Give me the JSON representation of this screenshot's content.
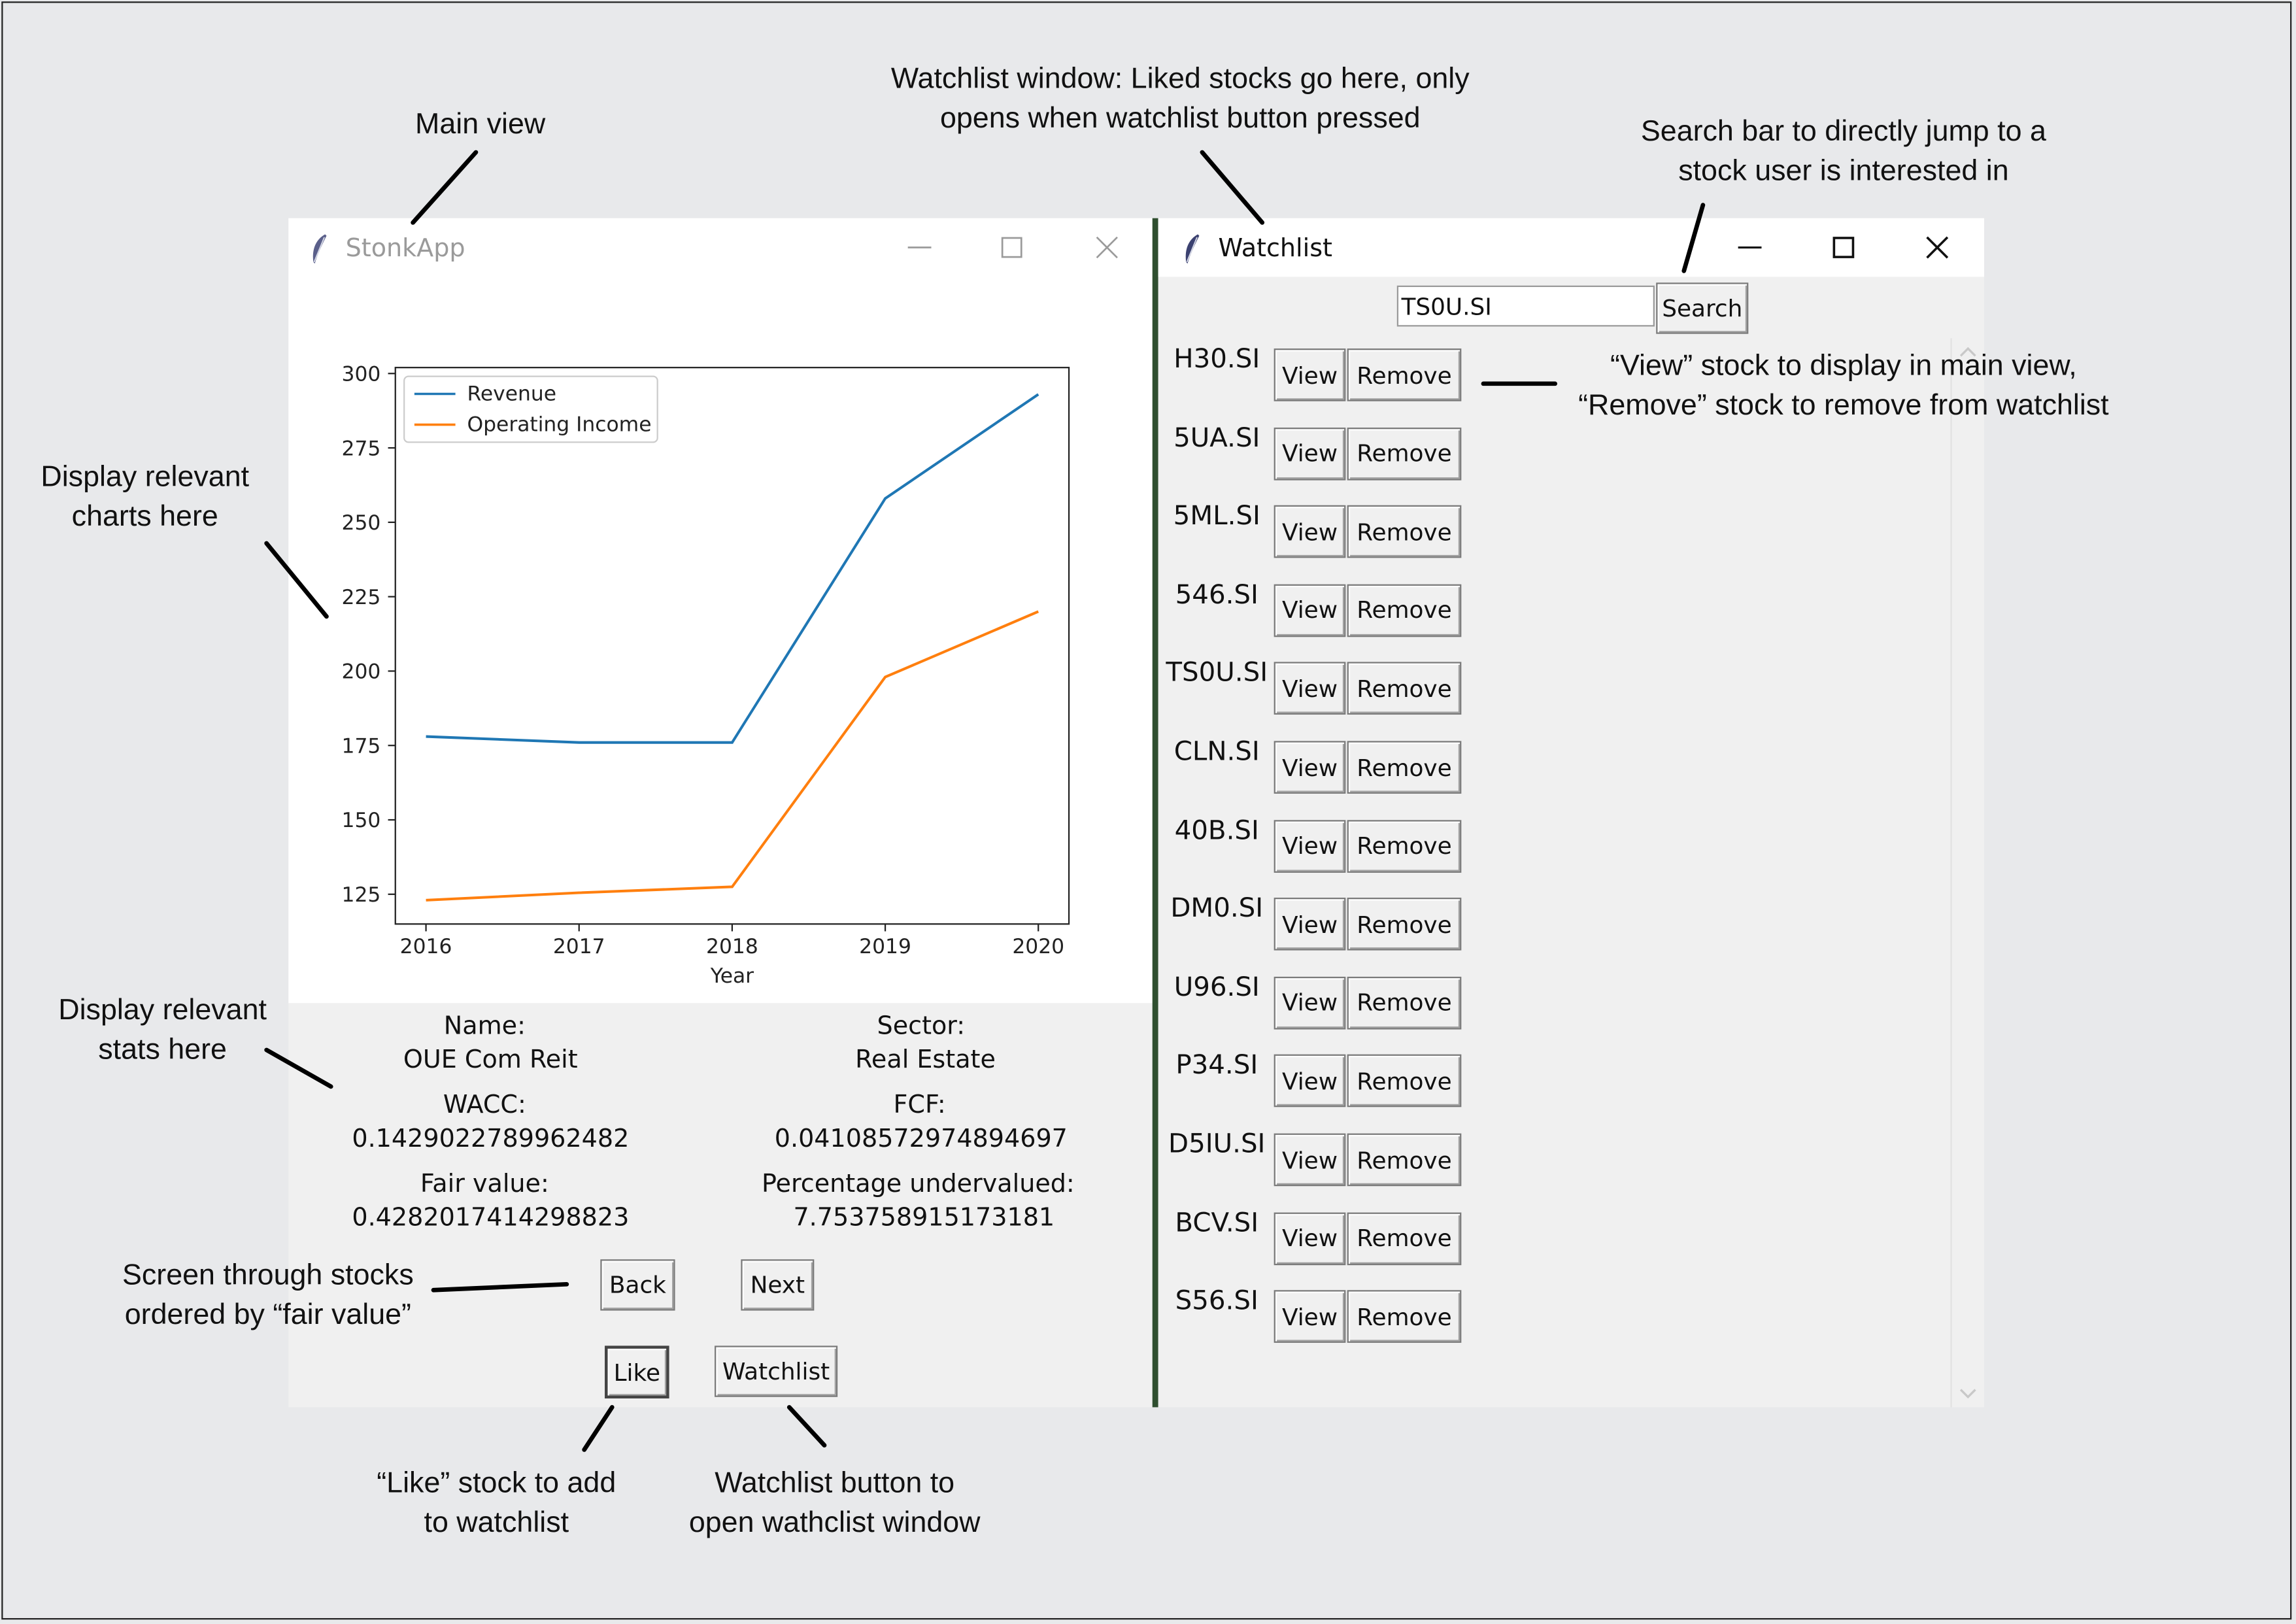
{
  "annotations": {
    "main_view": "Main view",
    "watchlist_window_line1": "Watchlist window: Liked stocks go here, only",
    "watchlist_window_line2": "opens when watchlist button pressed",
    "search_bar_line1": "Search bar to directly jump to a",
    "search_bar_line2": "stock user is interested in",
    "charts_line1": "Display relevant",
    "charts_line2": "charts here",
    "view_remove_line1": "“View” stock to display in main view,",
    "view_remove_line2": "“Remove” stock to remove from watchlist",
    "stats_line1": "Display relevant",
    "stats_line2": "stats here",
    "screen_line1": "Screen through stocks",
    "screen_line2": "ordered by  “fair value”",
    "like_line1": "“Like” stock to add",
    "like_line2": "to watchlist",
    "watchlist_btn_line1": "Watchlist button to",
    "watchlist_btn_line2": "open wathclist window"
  },
  "main_window": {
    "title": "StonkApp",
    "stats": {
      "name_label": "Name:",
      "name_value": "OUE Com Reit",
      "sector_label": "Sector:",
      "sector_value": "Real Estate",
      "wacc_label": "WACC:",
      "wacc_value": "0.1429022789962482",
      "fcf_label": "FCF:",
      "fcf_value": "0.04108572974894697",
      "fair_label": "Fair value:",
      "fair_value": "0.4282017414298823",
      "pct_label": "Percentage undervalued:",
      "pct_value": "7.753758915173181"
    },
    "buttons": {
      "back": "Back",
      "next": "Next",
      "like": "Like",
      "watchlist": "Watchlist"
    }
  },
  "watchlist_window": {
    "title": "Watchlist",
    "search_value": "TS0U.SI",
    "search_button": "Search",
    "view_label": "View",
    "remove_label": "Remove",
    "tickers": [
      "H30.SI",
      "5UA.SI",
      "5ML.SI",
      "546.SI",
      "TS0U.SI",
      "CLN.SI",
      "40B.SI",
      "DM0.SI",
      "U96.SI",
      "P34.SI",
      "D5IU.SI",
      "BCV.SI",
      "S56.SI"
    ]
  },
  "chart_data": {
    "type": "line",
    "xlabel": "Year",
    "ylabel": "",
    "x": [
      2016,
      2017,
      2018,
      2019,
      2020
    ],
    "xticks": [
      "2016",
      "2017",
      "2018",
      "2019",
      "2020"
    ],
    "yticks": [
      "125",
      "150",
      "175",
      "200",
      "225",
      "250",
      "275",
      "300"
    ],
    "ylim": [
      115,
      302
    ],
    "xlim": [
      2015.8,
      2020.2
    ],
    "legend_position": "top-left",
    "grid": false,
    "series": [
      {
        "name": "Revenue",
        "color": "#1f77b4",
        "values": [
          178,
          176,
          176,
          258,
          293
        ]
      },
      {
        "name": "Operating Income",
        "color": "#ff7f0e",
        "values": [
          123,
          125.5,
          127.5,
          198,
          220
        ]
      }
    ]
  }
}
